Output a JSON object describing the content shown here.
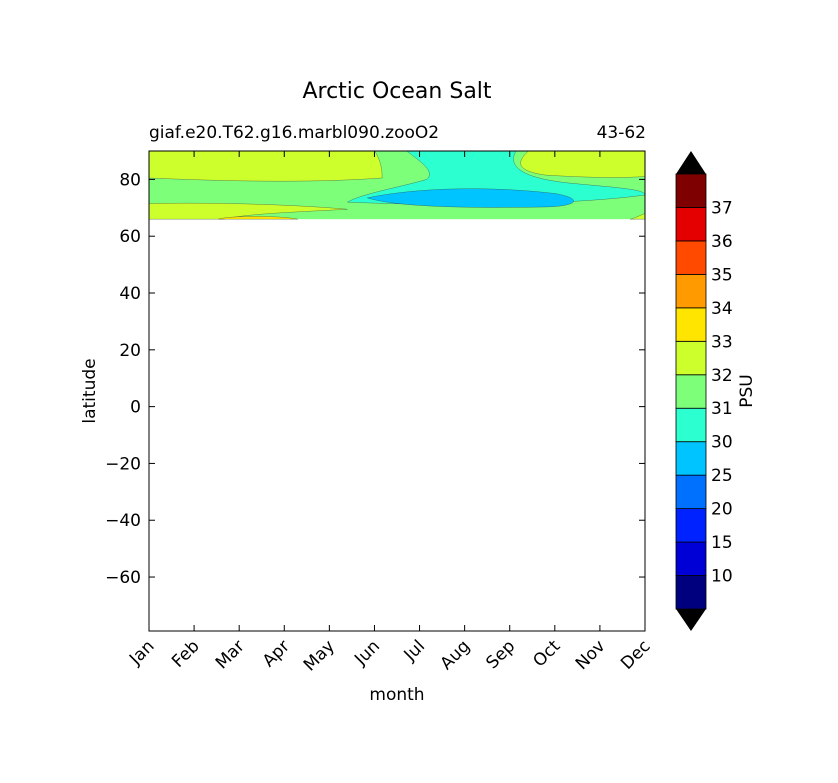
{
  "chart_data": {
    "type": "contour",
    "title": "Arctic Ocean Salt",
    "subtitle_left": "giaf.e20.T62.g16.marbl090.zooO2",
    "subtitle_right": "43-62",
    "xlabel": "month",
    "ylabel": "latitude",
    "x_categories": [
      "Jan",
      "Feb",
      "Mar",
      "Apr",
      "May",
      "Jun",
      "Jul",
      "Aug",
      "Sep",
      "Oct",
      "Nov",
      "Dec"
    ],
    "yticks": [
      80,
      60,
      40,
      20,
      0,
      -20,
      -40,
      -60
    ],
    "ylim": [
      -79,
      90
    ],
    "data_lat_range": [
      66,
      90
    ],
    "colorbar": {
      "label": "PSU",
      "extend": "both",
      "levels": [
        10,
        15,
        20,
        25,
        30,
        31,
        32,
        33,
        34,
        35,
        36,
        37
      ],
      "colors": [
        "#00007f",
        "#0000d6",
        "#0022ff",
        "#0070ff",
        "#00c4ff",
        "#2cffd0",
        "#7dff7a",
        "#ccff2c",
        "#ffe500",
        "#ff9a00",
        "#ff4a00",
        "#e40000",
        "#7f0000"
      ],
      "under_color": "#000000",
      "over_color": "#000000"
    },
    "regions": [
      {
        "range": "31-32",
        "color": "#7dff7a",
        "description": "background salinity band 66-90N"
      },
      {
        "range": "32-33",
        "color": "#ccff2c",
        "months": "Jan-Jun, Oct-Dec",
        "lat": "80-90"
      },
      {
        "range": "30-31",
        "color": "#2cffd0",
        "months": "Jun-Oct",
        "lat": "71-90"
      },
      {
        "range": "25-30",
        "color": "#00c4ff",
        "months": "Jun-Oct",
        "lat": "70-77"
      },
      {
        "range": "32-33",
        "color": "#ccff2c",
        "months": "Jan-Jun",
        "lat": "67-71"
      },
      {
        "range": "33-34",
        "color": "#ffe500",
        "months": "Mar-Apr",
        "lat": "66-67"
      }
    ]
  }
}
